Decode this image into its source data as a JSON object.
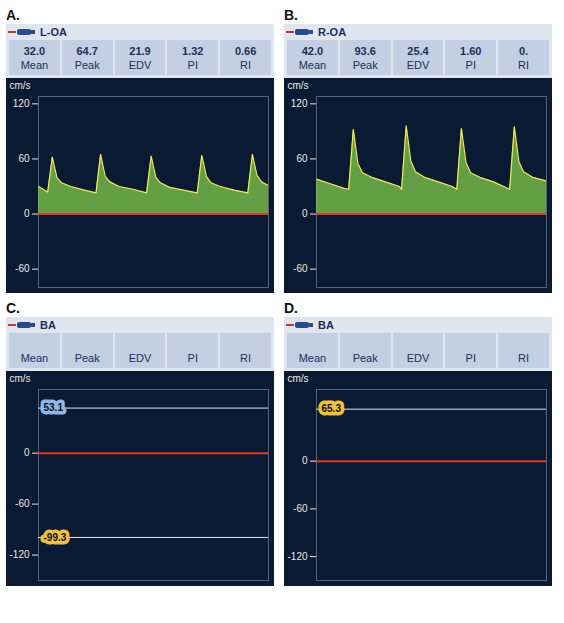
{
  "chart_data": [
    {
      "type": "area",
      "panel": "A.",
      "title": "L-OA",
      "metrics": [
        {
          "name": "Mean",
          "value": 32.0,
          "label": "32.0"
        },
        {
          "name": "Peak",
          "value": 64.7,
          "label": "64.7"
        },
        {
          "name": "EDV",
          "value": 21.9,
          "label": "21.9"
        },
        {
          "name": "PI",
          "value": 1.32,
          "label": "1.32"
        },
        {
          "name": "RI",
          "value": 0.66,
          "label": "0.66"
        }
      ],
      "y_label": "cm/s",
      "xlim": [
        0,
        100
      ],
      "ylim": [
        -80,
        128
      ],
      "yticks": [
        -60,
        0,
        60,
        120
      ],
      "tick_labels": "y",
      "grid": false,
      "color": "#7cc04a",
      "x": [
        0,
        4,
        6,
        8,
        10,
        14,
        20,
        25,
        27,
        29,
        31,
        35,
        41,
        47,
        49,
        51,
        53,
        57,
        63,
        69,
        71,
        73,
        75,
        79,
        85,
        91,
        93,
        95,
        97,
        100
      ],
      "values": [
        30,
        24,
        62,
        40,
        34,
        30,
        26,
        23,
        65,
        41,
        35,
        30,
        27,
        23,
        63,
        40,
        34,
        29,
        26,
        23,
        64,
        41,
        34,
        30,
        26,
        23,
        65,
        42,
        35,
        31
      ]
    },
    {
      "type": "area",
      "panel": "B.",
      "title": "R-OA",
      "metrics": [
        {
          "name": "Mean",
          "value": 42.0,
          "label": "42.0"
        },
        {
          "name": "Peak",
          "value": 93.6,
          "label": "93.6"
        },
        {
          "name": "EDV",
          "value": 25.4,
          "label": "25.4"
        },
        {
          "name": "PI",
          "value": 1.6,
          "label": "1.60"
        },
        {
          "name": "RI",
          "value": null,
          "label": "0."
        }
      ],
      "y_label": "cm/s",
      "xlim": [
        0,
        100
      ],
      "ylim": [
        -80,
        128
      ],
      "yticks": [
        -60,
        0,
        60,
        120
      ],
      "tick_labels": "y",
      "grid": false,
      "color": "#7cc04a",
      "x": [
        0,
        6,
        12,
        14,
        16,
        18,
        20,
        24,
        30,
        36,
        37,
        39,
        41,
        43,
        47,
        53,
        59,
        61,
        63,
        65,
        67,
        71,
        77,
        83,
        84,
        86,
        88,
        90,
        94,
        100
      ],
      "values": [
        38,
        33,
        28,
        27,
        92,
        55,
        45,
        40,
        35,
        30,
        27,
        96,
        58,
        46,
        40,
        35,
        30,
        27,
        93,
        56,
        45,
        40,
        35,
        28,
        27,
        95,
        57,
        46,
        40,
        36
      ]
    },
    {
      "type": "area",
      "panel": "C.",
      "title": "BA",
      "metrics": [
        {
          "name": "Mean"
        },
        {
          "name": "Peak"
        },
        {
          "name": "EDV"
        },
        {
          "name": "PI"
        },
        {
          "name": "RI"
        }
      ],
      "y_label": "cm/s",
      "xlim": [
        0,
        100
      ],
      "ylim": [
        -150,
        75
      ],
      "yticks": [
        -120,
        -60,
        0
      ],
      "tick_labels": "y",
      "grid": false,
      "gates": [
        {
          "value": 53.1,
          "color": "#8fb8e8"
        },
        {
          "value": -99.3,
          "color": "#f0c040"
        }
      ]
    },
    {
      "type": "area",
      "panel": "D.",
      "title": "BA",
      "metrics": [
        {
          "name": "Mean"
        },
        {
          "name": "Peak"
        },
        {
          "name": "EDV"
        },
        {
          "name": "PI"
        },
        {
          "name": "RI"
        }
      ],
      "y_label": "cm/s",
      "xlim": [
        0,
        100
      ],
      "ylim": [
        -150,
        90
      ],
      "yticks": [
        -120,
        -60,
        0
      ],
      "tick_labels": "y",
      "grid": false,
      "gates": [
        {
          "value": 65.3,
          "color": "#f0c040"
        }
      ]
    }
  ]
}
